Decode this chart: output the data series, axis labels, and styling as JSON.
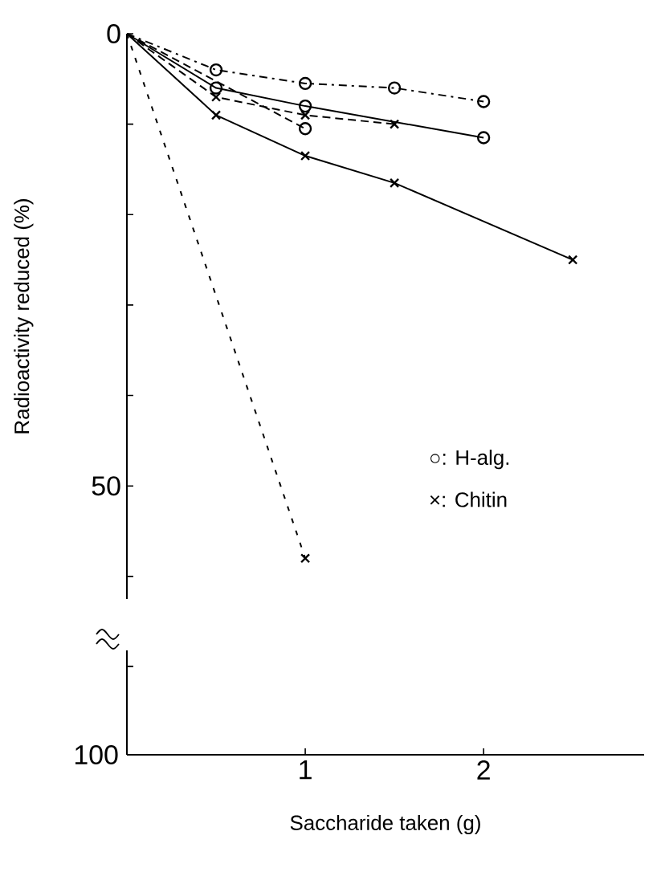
{
  "chart_data": {
    "type": "line",
    "ylabel": "Radioactivity reduced (%)",
    "xlabel": "Saccharide taken (g)",
    "xlim": [
      0,
      2.9
    ],
    "ylim": [
      62.5,
      0
    ],
    "xticks": [
      1,
      2
    ],
    "yticks": [
      0,
      {
        "value": 10,
        "label": null
      },
      {
        "value": 20,
        "label": null
      },
      {
        "value": 30,
        "label": null
      },
      {
        "value": 40,
        "label": null
      },
      50,
      {
        "value": 60,
        "label": null
      }
    ],
    "annotations": [
      "○: H-alg.",
      "×: Chitin",
      "100"
    ],
    "series": [
      {
        "color": "#000000",
        "marker": "circle",
        "line_style": "dashdot",
        "x": [
          0,
          0.5,
          1,
          1.5,
          2
        ],
        "values": [
          0,
          4,
          5.5,
          6,
          7.5
        ]
      },
      {
        "color": "#000000",
        "marker": "circle",
        "line_style": "solid",
        "x": [
          0,
          0.5,
          1,
          2
        ],
        "values": [
          0,
          6,
          8,
          11.5
        ]
      },
      {
        "color": "#000000",
        "marker": "cross",
        "line_style": "dashed",
        "x": [
          0,
          0.5,
          1,
          1.5
        ],
        "values": [
          0,
          7,
          9,
          10
        ]
      },
      {
        "color": "#000000",
        "marker": "circle",
        "line_style": "dashed",
        "x": [
          0,
          1
        ],
        "values": [
          0,
          10.5
        ]
      },
      {
        "color": "#000000",
        "marker": "cross",
        "line_style": "solid",
        "x": [
          0,
          0.5,
          1,
          1.5,
          2.5
        ],
        "values": [
          0,
          9,
          13.5,
          16.5,
          25
        ]
      },
      {
        "color": "#000000",
        "marker": "cross",
        "line_style": "dotted",
        "x": [
          0,
          1
        ],
        "values": [
          0,
          58
        ]
      }
    ]
  }
}
